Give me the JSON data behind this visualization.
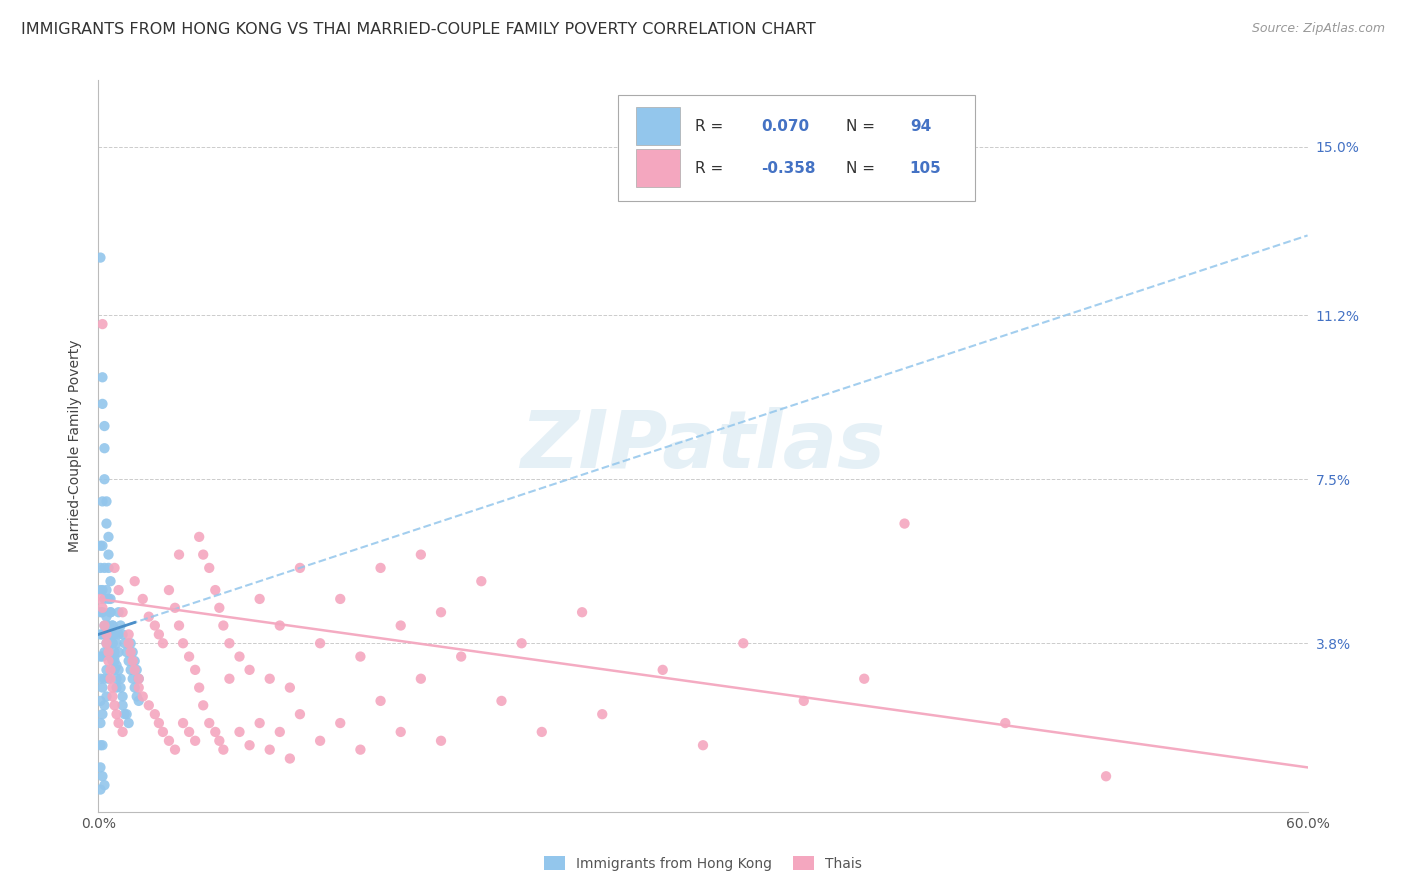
{
  "title": "IMMIGRANTS FROM HONG KONG VS THAI MARRIED-COUPLE FAMILY POVERTY CORRELATION CHART",
  "source": "Source: ZipAtlas.com",
  "ylabel": "Married-Couple Family Poverty",
  "ytick_positions": [
    0.0,
    0.038,
    0.075,
    0.112,
    0.15
  ],
  "ytick_labels": [
    "",
    "3.8%",
    "7.5%",
    "11.2%",
    "15.0%"
  ],
  "xlim": [
    0.0,
    0.6
  ],
  "ylim": [
    0.0,
    0.165
  ],
  "xtick_positions": [
    0.0,
    0.12,
    0.24,
    0.36,
    0.48,
    0.6
  ],
  "xtick_labels": [
    "0.0%",
    "",
    "",
    "",
    "",
    "60.0%"
  ],
  "hk_R": "0.070",
  "hk_N": "94",
  "thai_R": "-0.358",
  "thai_N": "105",
  "hk_color": "#93C6EC",
  "thai_color": "#F4A7BF",
  "hk_trend_color": "#93C6EC",
  "thai_trend_line_color": "#F4A7BF",
  "hk_solid_color": "#4B8EC8",
  "legend_label_hk": "Immigrants from Hong Kong",
  "legend_label_thai": "Thais",
  "watermark": "ZIPatlas",
  "title_fontsize": 11.5,
  "hk_trend_x": [
    0.0,
    0.6
  ],
  "hk_trend_y": [
    0.04,
    0.13
  ],
  "thai_trend_x": [
    0.0,
    0.6
  ],
  "thai_trend_y": [
    0.048,
    0.01
  ],
  "hk_scatter": [
    [
      0.001,
      0.125
    ],
    [
      0.002,
      0.098
    ],
    [
      0.002,
      0.092
    ],
    [
      0.003,
      0.087
    ],
    [
      0.003,
      0.082
    ],
    [
      0.003,
      0.075
    ],
    [
      0.004,
      0.07
    ],
    [
      0.004,
      0.065
    ],
    [
      0.005,
      0.062
    ],
    [
      0.005,
      0.058
    ],
    [
      0.005,
      0.055
    ],
    [
      0.006,
      0.052
    ],
    [
      0.006,
      0.048
    ],
    [
      0.006,
      0.045
    ],
    [
      0.007,
      0.042
    ],
    [
      0.007,
      0.04
    ],
    [
      0.007,
      0.038
    ],
    [
      0.008,
      0.036
    ],
    [
      0.008,
      0.034
    ],
    [
      0.008,
      0.032
    ],
    [
      0.009,
      0.03
    ],
    [
      0.009,
      0.028
    ],
    [
      0.01,
      0.04
    ],
    [
      0.01,
      0.036
    ],
    [
      0.01,
      0.032
    ],
    [
      0.011,
      0.03
    ],
    [
      0.011,
      0.028
    ],
    [
      0.012,
      0.026
    ],
    [
      0.012,
      0.024
    ],
    [
      0.013,
      0.022
    ],
    [
      0.001,
      0.06
    ],
    [
      0.001,
      0.055
    ],
    [
      0.001,
      0.05
    ],
    [
      0.001,
      0.045
    ],
    [
      0.001,
      0.04
    ],
    [
      0.001,
      0.035
    ],
    [
      0.001,
      0.03
    ],
    [
      0.001,
      0.025
    ],
    [
      0.001,
      0.02
    ],
    [
      0.001,
      0.015
    ],
    [
      0.001,
      0.01
    ],
    [
      0.001,
      0.005
    ],
    [
      0.002,
      0.07
    ],
    [
      0.002,
      0.06
    ],
    [
      0.002,
      0.05
    ],
    [
      0.002,
      0.045
    ],
    [
      0.002,
      0.04
    ],
    [
      0.002,
      0.035
    ],
    [
      0.002,
      0.028
    ],
    [
      0.002,
      0.022
    ],
    [
      0.002,
      0.015
    ],
    [
      0.003,
      0.055
    ],
    [
      0.003,
      0.048
    ],
    [
      0.003,
      0.042
    ],
    [
      0.003,
      0.036
    ],
    [
      0.003,
      0.03
    ],
    [
      0.003,
      0.024
    ],
    [
      0.004,
      0.05
    ],
    [
      0.004,
      0.044
    ],
    [
      0.004,
      0.038
    ],
    [
      0.004,
      0.032
    ],
    [
      0.004,
      0.026
    ],
    [
      0.005,
      0.048
    ],
    [
      0.005,
      0.042
    ],
    [
      0.005,
      0.036
    ],
    [
      0.005,
      0.03
    ],
    [
      0.006,
      0.045
    ],
    [
      0.006,
      0.04
    ],
    [
      0.006,
      0.035
    ],
    [
      0.007,
      0.042
    ],
    [
      0.007,
      0.038
    ],
    [
      0.007,
      0.034
    ],
    [
      0.008,
      0.04
    ],
    [
      0.008,
      0.035
    ],
    [
      0.009,
      0.038
    ],
    [
      0.009,
      0.033
    ],
    [
      0.01,
      0.045
    ],
    [
      0.011,
      0.042
    ],
    [
      0.012,
      0.04
    ],
    [
      0.013,
      0.038
    ],
    [
      0.014,
      0.036
    ],
    [
      0.015,
      0.034
    ],
    [
      0.016,
      0.032
    ],
    [
      0.017,
      0.03
    ],
    [
      0.018,
      0.028
    ],
    [
      0.019,
      0.026
    ],
    [
      0.02,
      0.025
    ],
    [
      0.014,
      0.022
    ],
    [
      0.015,
      0.02
    ],
    [
      0.016,
      0.038
    ],
    [
      0.017,
      0.036
    ],
    [
      0.018,
      0.034
    ],
    [
      0.019,
      0.032
    ],
    [
      0.02,
      0.03
    ],
    [
      0.002,
      0.008
    ],
    [
      0.003,
      0.006
    ]
  ],
  "thai_scatter": [
    [
      0.001,
      0.048
    ],
    [
      0.002,
      0.046
    ],
    [
      0.002,
      0.11
    ],
    [
      0.003,
      0.042
    ],
    [
      0.004,
      0.04
    ],
    [
      0.004,
      0.038
    ],
    [
      0.005,
      0.036
    ],
    [
      0.005,
      0.034
    ],
    [
      0.006,
      0.032
    ],
    [
      0.006,
      0.03
    ],
    [
      0.007,
      0.028
    ],
    [
      0.007,
      0.026
    ],
    [
      0.008,
      0.055
    ],
    [
      0.008,
      0.024
    ],
    [
      0.009,
      0.022
    ],
    [
      0.01,
      0.05
    ],
    [
      0.01,
      0.02
    ],
    [
      0.012,
      0.045
    ],
    [
      0.012,
      0.018
    ],
    [
      0.015,
      0.04
    ],
    [
      0.015,
      0.038
    ],
    [
      0.016,
      0.036
    ],
    [
      0.017,
      0.034
    ],
    [
      0.018,
      0.052
    ],
    [
      0.018,
      0.032
    ],
    [
      0.02,
      0.03
    ],
    [
      0.02,
      0.028
    ],
    [
      0.022,
      0.048
    ],
    [
      0.022,
      0.026
    ],
    [
      0.025,
      0.044
    ],
    [
      0.025,
      0.024
    ],
    [
      0.028,
      0.042
    ],
    [
      0.028,
      0.022
    ],
    [
      0.03,
      0.04
    ],
    [
      0.03,
      0.02
    ],
    [
      0.032,
      0.038
    ],
    [
      0.032,
      0.018
    ],
    [
      0.035,
      0.05
    ],
    [
      0.035,
      0.016
    ],
    [
      0.038,
      0.046
    ],
    [
      0.038,
      0.014
    ],
    [
      0.04,
      0.042
    ],
    [
      0.04,
      0.058
    ],
    [
      0.042,
      0.038
    ],
    [
      0.042,
      0.02
    ],
    [
      0.045,
      0.035
    ],
    [
      0.045,
      0.018
    ],
    [
      0.048,
      0.032
    ],
    [
      0.048,
      0.016
    ],
    [
      0.05,
      0.062
    ],
    [
      0.05,
      0.028
    ],
    [
      0.052,
      0.058
    ],
    [
      0.052,
      0.024
    ],
    [
      0.055,
      0.055
    ],
    [
      0.055,
      0.02
    ],
    [
      0.058,
      0.05
    ],
    [
      0.058,
      0.018
    ],
    [
      0.06,
      0.046
    ],
    [
      0.06,
      0.016
    ],
    [
      0.062,
      0.042
    ],
    [
      0.062,
      0.014
    ],
    [
      0.065,
      0.038
    ],
    [
      0.065,
      0.03
    ],
    [
      0.07,
      0.035
    ],
    [
      0.07,
      0.018
    ],
    [
      0.075,
      0.032
    ],
    [
      0.075,
      0.015
    ],
    [
      0.08,
      0.048
    ],
    [
      0.08,
      0.02
    ],
    [
      0.085,
      0.03
    ],
    [
      0.085,
      0.014
    ],
    [
      0.09,
      0.042
    ],
    [
      0.09,
      0.018
    ],
    [
      0.095,
      0.028
    ],
    [
      0.095,
      0.012
    ],
    [
      0.1,
      0.055
    ],
    [
      0.1,
      0.022
    ],
    [
      0.11,
      0.038
    ],
    [
      0.11,
      0.016
    ],
    [
      0.12,
      0.048
    ],
    [
      0.12,
      0.02
    ],
    [
      0.13,
      0.035
    ],
    [
      0.13,
      0.014
    ],
    [
      0.14,
      0.055
    ],
    [
      0.14,
      0.025
    ],
    [
      0.15,
      0.042
    ],
    [
      0.15,
      0.018
    ],
    [
      0.16,
      0.058
    ],
    [
      0.16,
      0.03
    ],
    [
      0.17,
      0.045
    ],
    [
      0.17,
      0.016
    ],
    [
      0.18,
      0.035
    ],
    [
      0.19,
      0.052
    ],
    [
      0.2,
      0.025
    ],
    [
      0.21,
      0.038
    ],
    [
      0.22,
      0.018
    ],
    [
      0.24,
      0.045
    ],
    [
      0.25,
      0.022
    ],
    [
      0.28,
      0.032
    ],
    [
      0.3,
      0.015
    ],
    [
      0.32,
      0.038
    ],
    [
      0.35,
      0.025
    ],
    [
      0.38,
      0.03
    ],
    [
      0.4,
      0.065
    ],
    [
      0.45,
      0.02
    ],
    [
      0.5,
      0.008
    ]
  ]
}
